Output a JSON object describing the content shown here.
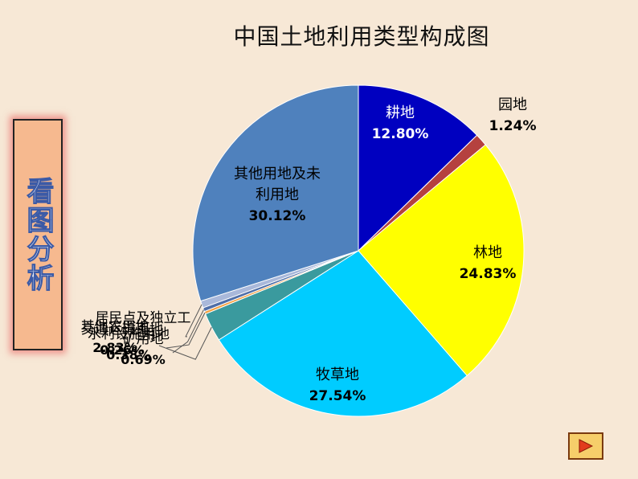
{
  "title": "中国土地利用类型构成图",
  "side_label": "看图分析",
  "play_button": {
    "icon": "play-icon"
  },
  "chart_data": {
    "type": "pie",
    "title": "中国土地利用类型构成图",
    "slices": [
      {
        "label": "耕地",
        "value": 12.8,
        "value_label": "12.80%",
        "color": "#0000c0",
        "text_color": "#ffffff"
      },
      {
        "label": "园地",
        "value": 1.24,
        "value_label": "1.24%",
        "color": "#b5413f",
        "text_color": "#000000"
      },
      {
        "label": "林地",
        "value": 24.83,
        "value_label": "24.83%",
        "color": "#ffff00",
        "text_color": "#000000"
      },
      {
        "label": "牧草地",
        "value": 27.54,
        "value_label": "27.54%",
        "color": "#00ccff",
        "text_color": "#000000"
      },
      {
        "label": "其他农用地",
        "value": 2.83,
        "value_label": "2.83%",
        "color": "#3a9a9e",
        "text_color": "#000000"
      },
      {
        "label": "交通运输用地",
        "value": 0.26,
        "value_label": "0.26%",
        "color": "#f5a040",
        "text_color": "#000000"
      },
      {
        "label": "水利设施用地",
        "value": 0.38,
        "value_label": "0.38%",
        "color": "#4f6ea8",
        "text_color": "#000000"
      },
      {
        "label": "居民点及独立工矿用地",
        "value": 0.69,
        "value_label": "0.69%",
        "color": "#a9b8da",
        "text_color": "#000000"
      },
      {
        "label": "其他用地及未利用地",
        "value": 30.12,
        "value_label": "30.12%",
        "color": "#4f81bd",
        "text_color": "#000000"
      }
    ]
  }
}
